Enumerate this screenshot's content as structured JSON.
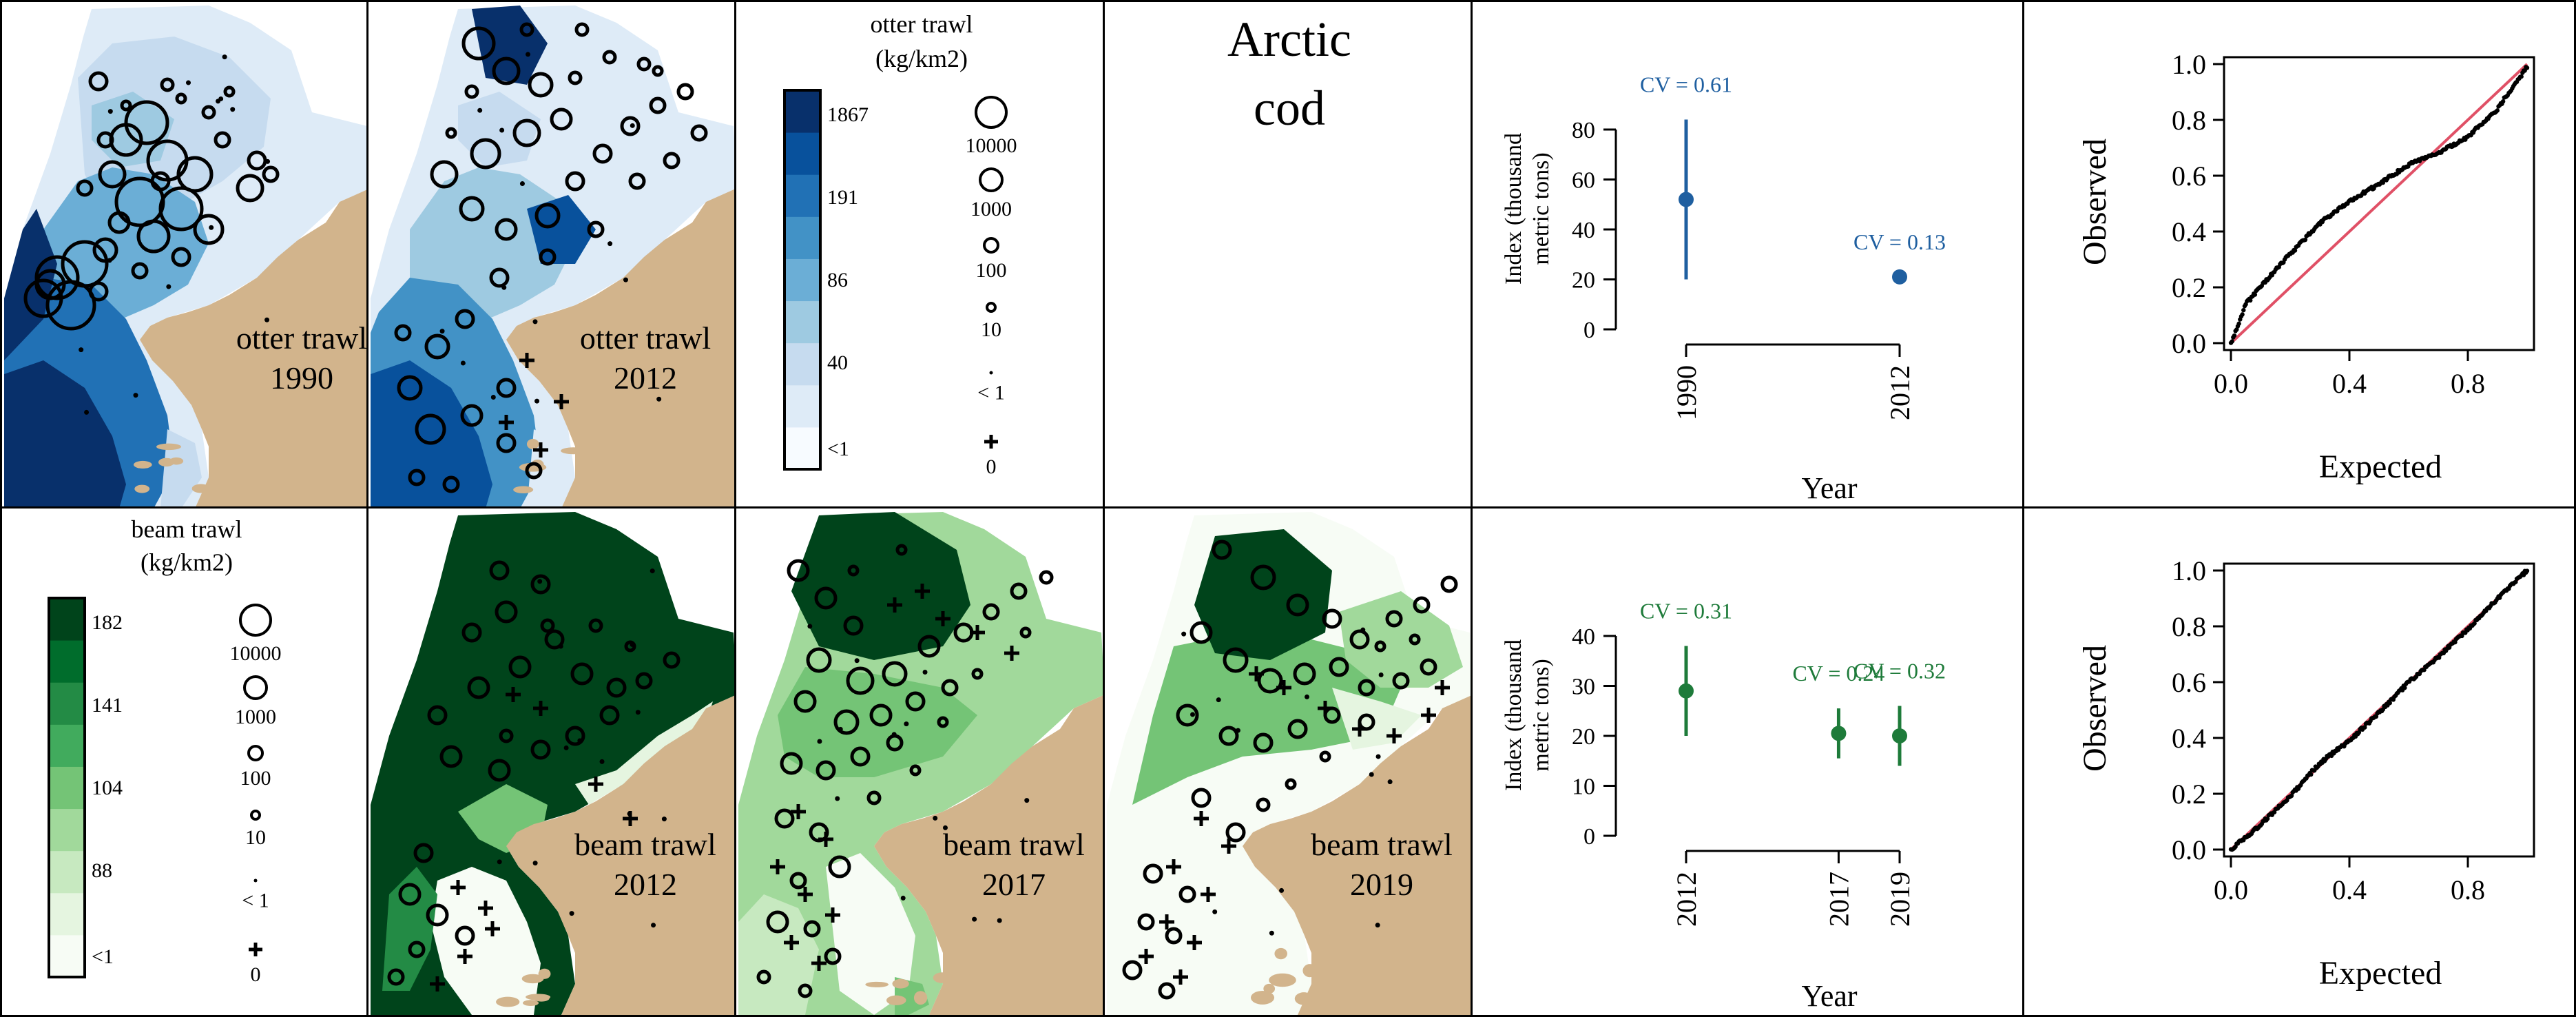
{
  "colors": {
    "land": "#d2b48c",
    "otter_ramp": [
      "#f7fbff",
      "#deebf7",
      "#c6dbef",
      "#9ecae1",
      "#6baed6",
      "#4292c6",
      "#2171b5",
      "#08519c",
      "#08306b"
    ],
    "beam_ramp": [
      "#f7fcf5",
      "#e5f5e0",
      "#c7e9c0",
      "#a1d99b",
      "#74c476",
      "#41ab5d",
      "#238b45",
      "#006d2c",
      "#00441b"
    ],
    "otter_series": "#1f5fa0",
    "beam_series": "#1e7b3a",
    "qq_line": "#e05066",
    "qq_points": "#000000"
  },
  "maps": [
    {
      "id": "otter-1990",
      "label_gear": "otter trawl",
      "label_year": "1990",
      "gear": "otter"
    },
    {
      "id": "otter-2012",
      "label_gear": "otter trawl",
      "label_year": "2012",
      "gear": "otter"
    },
    {
      "id": "beam-2012",
      "label_gear": "beam trawl",
      "label_year": "2012",
      "gear": "beam"
    },
    {
      "id": "beam-2017",
      "label_gear": "beam trawl",
      "label_year": "2017",
      "gear": "beam"
    },
    {
      "id": "beam-2019",
      "label_gear": "beam trawl",
      "label_year": "2019",
      "gear": "beam"
    }
  ],
  "species": {
    "line1": "Arctic",
    "line2": "cod"
  },
  "legends": {
    "otter": {
      "title1": "otter trawl",
      "title2": "(kg/km2)",
      "breaks": [
        "1867",
        "191",
        "86",
        "40",
        "<1"
      ],
      "circles": [
        "10000",
        "1000",
        "100",
        "10",
        "< 1"
      ],
      "zero": "0"
    },
    "beam": {
      "title1": "beam trawl",
      "title2": "(kg/km2)",
      "breaks": [
        "182",
        "141",
        "104",
        "88",
        "<1"
      ],
      "circles": [
        "10000",
        "1000",
        "100",
        "10",
        "< 1"
      ],
      "zero": "0"
    }
  },
  "chart_data": [
    {
      "type": "scatter",
      "id": "index-otter",
      "xlabel": "Year",
      "ylabel_line1": "Index (thousand",
      "ylabel_line2": "metric tons)",
      "ylim": [
        0,
        80
      ],
      "yticks": [
        0,
        20,
        40,
        60,
        80
      ],
      "xticks": [
        "1990",
        "2012"
      ],
      "points": [
        {
          "x": 1990,
          "y": 52,
          "lower": 20,
          "upper": 84,
          "cv": "CV = 0.61"
        },
        {
          "x": 2012,
          "y": 21,
          "lower": 21,
          "upper": 21,
          "cv": "CV = 0.13"
        }
      ]
    },
    {
      "type": "scatter",
      "id": "index-beam",
      "xlabel": "Year",
      "ylabel_line1": "Index (thousand",
      "ylabel_line2": "metric tons)",
      "ylim": [
        0,
        40
      ],
      "yticks": [
        0,
        10,
        20,
        30,
        40
      ],
      "xticks": [
        "2012",
        "2017",
        "2019"
      ],
      "points": [
        {
          "x": 2012,
          "y": 29,
          "lower": 20,
          "upper": 38,
          "cv": "CV = 0.31"
        },
        {
          "x": 2017,
          "y": 20.5,
          "lower": 15.5,
          "upper": 25.5,
          "cv": "CV = 0.24"
        },
        {
          "x": 2019,
          "y": 20,
          "lower": 14,
          "upper": 26,
          "cv": "CV = 0.32"
        }
      ]
    },
    {
      "type": "scatter",
      "id": "qq-otter",
      "xlabel": "Expected",
      "ylabel": "Observed",
      "xlim": [
        0,
        1
      ],
      "ylim": [
        0,
        1
      ],
      "xticks": [
        "0.0",
        "0.4",
        "0.8"
      ],
      "yticks": [
        "0.0",
        "0.2",
        "0.4",
        "0.6",
        "0.8",
        "1.0"
      ],
      "reference_line": "y = x",
      "curve": [
        [
          0,
          0
        ],
        [
          0.05,
          0.14
        ],
        [
          0.1,
          0.2
        ],
        [
          0.2,
          0.32
        ],
        [
          0.3,
          0.43
        ],
        [
          0.4,
          0.51
        ],
        [
          0.5,
          0.57
        ],
        [
          0.6,
          0.64
        ],
        [
          0.7,
          0.68
        ],
        [
          0.8,
          0.74
        ],
        [
          0.9,
          0.84
        ],
        [
          1,
          0.99
        ]
      ]
    },
    {
      "type": "scatter",
      "id": "qq-beam",
      "xlabel": "Expected",
      "ylabel": "Observed",
      "xlim": [
        0,
        1
      ],
      "ylim": [
        0,
        1
      ],
      "xticks": [
        "0.0",
        "0.4",
        "0.8"
      ],
      "yticks": [
        "0.0",
        "0.2",
        "0.4",
        "0.6",
        "0.8",
        "1.0"
      ],
      "reference_line": "y = x",
      "curve": [
        [
          0,
          0
        ],
        [
          0.1,
          0.09
        ],
        [
          0.2,
          0.19
        ],
        [
          0.3,
          0.31
        ],
        [
          0.4,
          0.39
        ],
        [
          0.5,
          0.49
        ],
        [
          0.6,
          0.6
        ],
        [
          0.7,
          0.69
        ],
        [
          0.8,
          0.79
        ],
        [
          0.9,
          0.9
        ],
        [
          1,
          1
        ]
      ]
    }
  ]
}
